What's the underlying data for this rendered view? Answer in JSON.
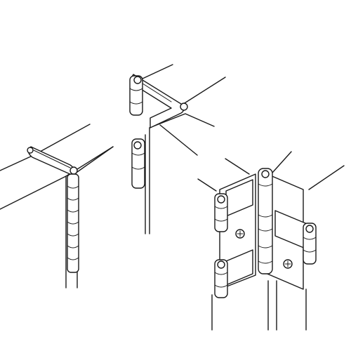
{
  "figure": {
    "background": "#ffffff",
    "stroke_color": "#1a1a1a",
    "illustrations": [
      {
        "name": "continuous-piano-hinge",
        "knuckles": 7
      },
      {
        "name": "corner-wrap-hinge",
        "knuckle_groups": 2
      },
      {
        "name": "double-leaf-butt-hinge",
        "knuckle_groups": 3,
        "screws": 2
      }
    ]
  }
}
